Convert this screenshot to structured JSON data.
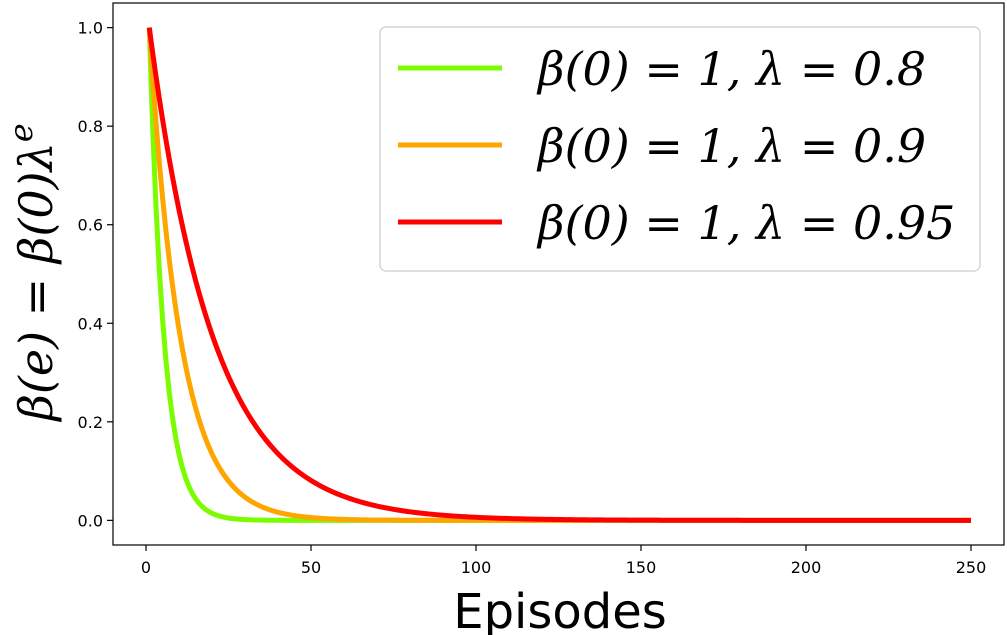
{
  "chart_data": {
    "type": "line",
    "title": "",
    "xlabel": "Episodes",
    "ylabel": "β(e) = β(0)λ^e",
    "ylabel_parts": {
      "lhs": "β(e) = β(0)λ",
      "sup": "e"
    },
    "xlim": [
      -10,
      260
    ],
    "ylim": [
      -0.05,
      1.05
    ],
    "xticks": [
      0,
      50,
      100,
      150,
      200,
      250
    ],
    "yticks": [
      0.0,
      0.2,
      0.4,
      0.6,
      0.8,
      1.0
    ],
    "xtick_labels": [
      "0",
      "50",
      "100",
      "150",
      "200",
      "250"
    ],
    "ytick_labels": [
      "0.0",
      "0.2",
      "0.4",
      "0.6",
      "0.8",
      "1.0"
    ],
    "x_range": [
      1,
      250
    ],
    "legend_position": "top-right",
    "grid": false,
    "series": [
      {
        "name": "β(0) = 1, λ = 0.8",
        "beta0": 1,
        "lambda": 0.8,
        "color": "#7cfc00"
      },
      {
        "name": "β(0) = 1, λ = 0.9",
        "beta0": 1,
        "lambda": 0.9,
        "color": "#ffa500"
      },
      {
        "name": "β(0) = 1, λ = 0.95",
        "beta0": 1,
        "lambda": 0.95,
        "color": "#ff0000"
      }
    ]
  }
}
